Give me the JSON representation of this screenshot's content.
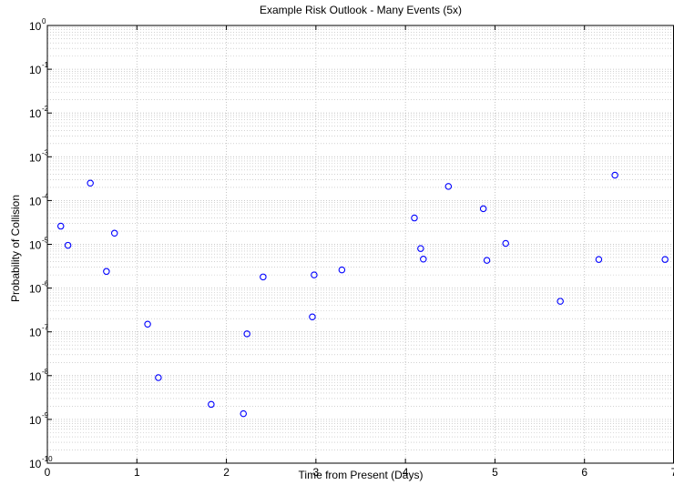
{
  "chart_data": {
    "type": "scatter",
    "title": "Example Risk Outlook - Many Events (5x)",
    "xlabel": "Time from Present (Days)",
    "ylabel": "Probability of Collision",
    "xlim": [
      0,
      7
    ],
    "ylim": [
      1e-10,
      1
    ],
    "yscale": "log",
    "xticks": [
      "0",
      "1",
      "2",
      "3",
      "4",
      "5",
      "6",
      "7"
    ],
    "yticks": [
      {
        "base": "10",
        "exp": "0"
      },
      {
        "base": "10",
        "exp": "-1"
      },
      {
        "base": "10",
        "exp": "-2"
      },
      {
        "base": "10",
        "exp": "-3"
      },
      {
        "base": "10",
        "exp": "-4"
      },
      {
        "base": "10",
        "exp": "-5"
      },
      {
        "base": "10",
        "exp": "-6"
      },
      {
        "base": "10",
        "exp": "-7"
      },
      {
        "base": "10",
        "exp": "-8"
      },
      {
        "base": "10",
        "exp": "-9"
      },
      {
        "base": "10",
        "exp": "-10"
      }
    ],
    "grid": true,
    "marker": "circle",
    "marker_color": "#0000ff",
    "points": [
      {
        "x": 0.15,
        "y": 2.6e-05
      },
      {
        "x": 0.23,
        "y": 9.5e-06
      },
      {
        "x": 0.48,
        "y": 0.00025
      },
      {
        "x": 0.66,
        "y": 2.4e-06
      },
      {
        "x": 0.75,
        "y": 1.8e-05
      },
      {
        "x": 1.12,
        "y": 1.5e-07
      },
      {
        "x": 1.24,
        "y": 9e-09
      },
      {
        "x": 1.83,
        "y": 2.2e-09
      },
      {
        "x": 2.19,
        "y": 1.35e-09
      },
      {
        "x": 2.23,
        "y": 9e-08
      },
      {
        "x": 2.41,
        "y": 1.8e-06
      },
      {
        "x": 2.96,
        "y": 2.2e-07
      },
      {
        "x": 2.98,
        "y": 2e-06
      },
      {
        "x": 3.29,
        "y": 2.6e-06
      },
      {
        "x": 4.1,
        "y": 4e-05
      },
      {
        "x": 4.17,
        "y": 8e-06
      },
      {
        "x": 4.2,
        "y": 4.6e-06
      },
      {
        "x": 4.48,
        "y": 0.00021
      },
      {
        "x": 4.87,
        "y": 6.5e-05
      },
      {
        "x": 4.91,
        "y": 4.3e-06
      },
      {
        "x": 5.12,
        "y": 1.05e-05
      },
      {
        "x": 5.73,
        "y": 5e-07
      },
      {
        "x": 6.16,
        "y": 4.5e-06
      },
      {
        "x": 6.34,
        "y": 0.00038
      },
      {
        "x": 6.9,
        "y": 4.5e-06
      }
    ]
  },
  "colors": {
    "grid": "#b8b8b8",
    "axis": "#000000",
    "marker": "#0000ff"
  }
}
